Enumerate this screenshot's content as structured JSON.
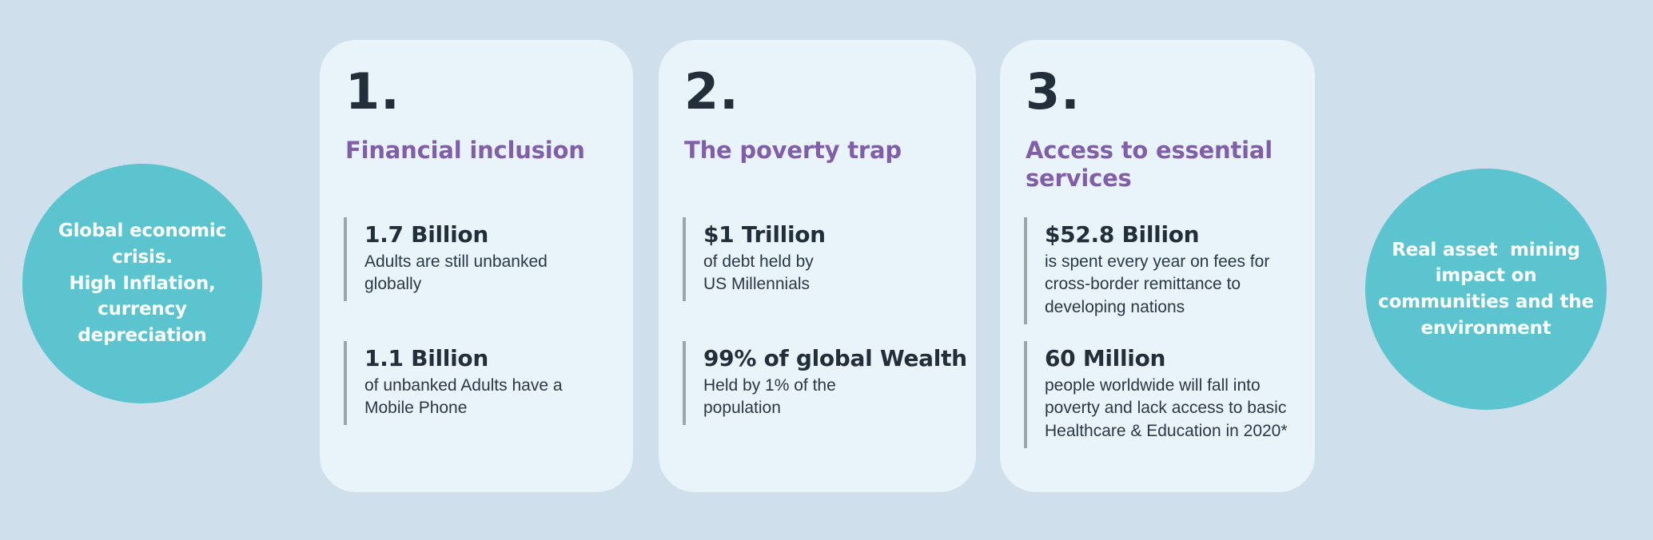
{
  "page": {
    "background": "#cfdfeb",
    "card_background": "#e9f3fa",
    "accent_teal": "#5bc4cf",
    "accent_purple": "#815fa8",
    "text_dark": "#222f3b",
    "stat_bar_gray": "#9aa5ad"
  },
  "left_circle": {
    "text": "Global economic\ncrisis.\nHigh Inflation,\ncurrency\ndepreciation"
  },
  "right_circle": {
    "text": "Real asset  mining\nimpact on\ncommunities and the\nenvironment"
  },
  "cards": [
    {
      "number": "1.",
      "title": "Financial inclusion",
      "stats": [
        {
          "value": "1.7 Billion",
          "description": "Adults are still unbanked\nglobally"
        },
        {
          "value": "1.1 Billion",
          "description": "of unbanked Adults have a\nMobile Phone"
        }
      ]
    },
    {
      "number": "2.",
      "title": "The poverty trap",
      "stats": [
        {
          "value": "$1 Trillion",
          "description": "of debt held by\nUS Millennials"
        },
        {
          "value": "99% of global Wealth",
          "description": "Held by 1% of the\npopulation"
        }
      ]
    },
    {
      "number": "3.",
      "title": "Access to essential\nservices",
      "stats": [
        {
          "value": "$52.8 Billion",
          "description": "is spent every year on fees for\ncross-border remittance to\ndeveloping nations"
        },
        {
          "value": "60 Million",
          "description": "people worldwide will fall into\npoverty and lack access to basic\nHealthcare & Education in 2020*"
        }
      ]
    }
  ]
}
